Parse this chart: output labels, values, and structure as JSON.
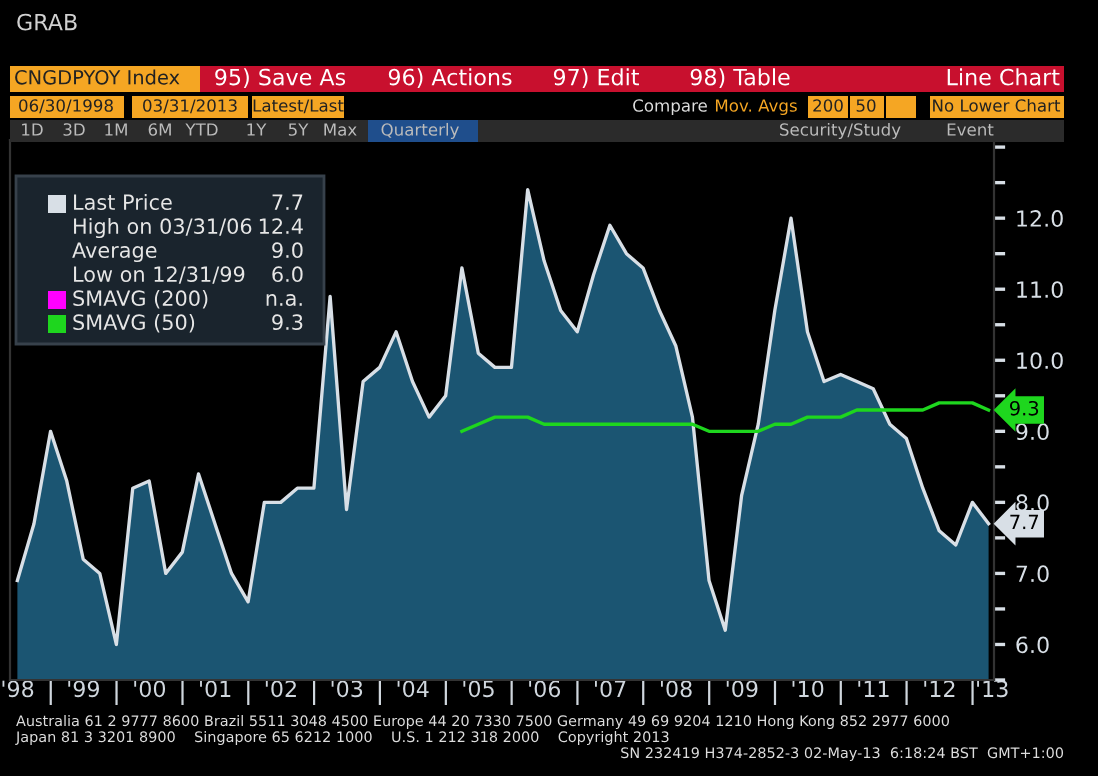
{
  "chart_data": {
    "type": "area",
    "x": [
      "1998-06-30",
      "1998-09-30",
      "1998-12-31",
      "1999-03-31",
      "1999-06-30",
      "1999-09-30",
      "1999-12-31",
      "2000-03-31",
      "2000-06-30",
      "2000-09-30",
      "2000-12-31",
      "2001-03-31",
      "2001-06-30",
      "2001-09-30",
      "2001-12-31",
      "2002-03-31",
      "2002-06-30",
      "2002-09-30",
      "2002-12-31",
      "2003-03-31",
      "2003-06-30",
      "2003-09-30",
      "2003-12-31",
      "2004-03-31",
      "2004-06-30",
      "2004-09-30",
      "2004-12-31",
      "2005-03-31",
      "2005-06-30",
      "2005-09-30",
      "2005-12-31",
      "2006-03-31",
      "2006-06-30",
      "2006-09-30",
      "2006-12-31",
      "2007-03-31",
      "2007-06-30",
      "2007-09-30",
      "2007-12-31",
      "2008-03-31",
      "2008-06-30",
      "2008-09-30",
      "2008-12-31",
      "2009-03-31",
      "2009-06-30",
      "2009-09-30",
      "2009-12-31",
      "2010-03-31",
      "2010-06-30",
      "2010-09-30",
      "2010-12-31",
      "2011-03-31",
      "2011-06-30",
      "2011-09-30",
      "2011-12-31",
      "2012-03-31",
      "2012-06-30",
      "2012-09-30",
      "2012-12-31",
      "2013-03-31"
    ],
    "series": [
      {
        "name": "Last Price",
        "color": "#d8dfe6",
        "values": [
          6.9,
          7.7,
          9.0,
          8.3,
          7.2,
          7.0,
          6.0,
          8.2,
          8.3,
          7.0,
          7.3,
          8.4,
          7.7,
          7.0,
          6.6,
          8.0,
          8.0,
          8.2,
          8.2,
          10.9,
          7.9,
          9.7,
          9.9,
          10.4,
          9.7,
          9.2,
          9.5,
          11.3,
          10.1,
          9.9,
          9.9,
          12.4,
          11.4,
          10.7,
          10.4,
          11.2,
          11.9,
          11.5,
          11.3,
          10.7,
          10.2,
          9.2,
          6.9,
          6.2,
          8.1,
          9.1,
          10.7,
          12.0,
          10.4,
          9.7,
          9.8,
          9.7,
          9.6,
          9.1,
          8.9,
          8.2,
          7.6,
          7.4,
          8.0,
          7.7
        ],
        "value_labels": [
          null,
          null,
          null,
          null,
          null,
          null,
          null,
          null,
          null,
          null,
          null,
          null,
          null,
          null,
          null,
          null,
          null,
          null,
          null,
          null,
          null,
          null,
          null,
          null,
          null,
          null,
          null,
          null,
          null,
          null,
          null,
          null,
          null,
          null,
          null,
          null,
          null,
          null,
          null,
          null,
          null,
          null,
          null,
          null,
          null,
          null,
          null,
          null,
          null,
          null,
          null,
          null,
          null,
          null,
          null,
          null,
          null,
          null,
          null,
          "7.7"
        ]
      },
      {
        "name": "SMAVG (200)",
        "type": "line",
        "color": "#ff00ff",
        "values": [
          null,
          null,
          null,
          null,
          null,
          null,
          null,
          null,
          null,
          null,
          null,
          null,
          null,
          null,
          null,
          null,
          null,
          null,
          null,
          null,
          null,
          null,
          null,
          null,
          null,
          null,
          null,
          null,
          null,
          null,
          null,
          null,
          null,
          null,
          null,
          null,
          null,
          null,
          null,
          null,
          null,
          null,
          null,
          null,
          null,
          null,
          null,
          null,
          null,
          null,
          null,
          null,
          null,
          null,
          null,
          null,
          null,
          null,
          null,
          null
        ]
      },
      {
        "name": "SMAVG (50)",
        "type": "line",
        "color": "#1ed61e",
        "values": [
          null,
          null,
          null,
          null,
          null,
          null,
          null,
          null,
          null,
          null,
          null,
          null,
          null,
          null,
          null,
          null,
          null,
          null,
          null,
          null,
          null,
          null,
          null,
          null,
          null,
          null,
          null,
          9.0,
          9.1,
          9.2,
          9.2,
          9.2,
          9.1,
          9.1,
          9.1,
          9.1,
          9.1,
          9.1,
          9.1,
          9.1,
          9.1,
          9.1,
          9.0,
          9.0,
          9.0,
          9.0,
          9.1,
          9.1,
          9.2,
          9.2,
          9.2,
          9.3,
          9.3,
          9.3,
          9.3,
          9.3,
          9.4,
          9.4,
          9.4,
          9.3
        ],
        "value_labels": [
          null,
          null,
          null,
          null,
          null,
          null,
          null,
          null,
          null,
          null,
          null,
          null,
          null,
          null,
          null,
          null,
          null,
          null,
          null,
          null,
          null,
          null,
          null,
          null,
          null,
          null,
          null,
          null,
          null,
          null,
          null,
          null,
          null,
          null,
          null,
          null,
          null,
          null,
          null,
          null,
          null,
          null,
          null,
          null,
          null,
          null,
          null,
          null,
          null,
          null,
          null,
          null,
          null,
          null,
          null,
          null,
          null,
          null,
          null,
          "9.3"
        ]
      }
    ],
    "xlim": [
      "1998-05-20",
      "2013-04-30"
    ],
    "xticks": [
      {
        "value": "1998-07-01",
        "label": "'98"
      },
      {
        "value": "1999-01-01",
        "label": null
      },
      {
        "value": "1999-07-01",
        "label": "'99"
      },
      {
        "value": "2000-01-01",
        "label": null
      },
      {
        "value": "2000-07-01",
        "label": "'00"
      },
      {
        "value": "2001-01-01",
        "label": null
      },
      {
        "value": "2001-07-01",
        "label": "'01"
      },
      {
        "value": "2002-01-01",
        "label": null
      },
      {
        "value": "2002-07-01",
        "label": "'02"
      },
      {
        "value": "2003-01-01",
        "label": null
      },
      {
        "value": "2003-07-01",
        "label": "'03"
      },
      {
        "value": "2004-01-01",
        "label": null
      },
      {
        "value": "2004-07-01",
        "label": "'04"
      },
      {
        "value": "2005-01-01",
        "label": null
      },
      {
        "value": "2005-07-01",
        "label": "'05"
      },
      {
        "value": "2006-01-01",
        "label": null
      },
      {
        "value": "2006-07-01",
        "label": "'06"
      },
      {
        "value": "2007-01-01",
        "label": null
      },
      {
        "value": "2007-07-01",
        "label": "'07"
      },
      {
        "value": "2008-01-01",
        "label": null
      },
      {
        "value": "2008-07-01",
        "label": "'08"
      },
      {
        "value": "2009-01-01",
        "label": null
      },
      {
        "value": "2009-07-01",
        "label": "'09"
      },
      {
        "value": "2010-01-01",
        "label": null
      },
      {
        "value": "2010-07-01",
        "label": "'10"
      },
      {
        "value": "2011-01-01",
        "label": null
      },
      {
        "value": "2011-07-01",
        "label": "'11"
      },
      {
        "value": "2012-01-01",
        "label": null
      },
      {
        "value": "2012-07-01",
        "label": "'12"
      },
      {
        "value": "2013-01-01",
        "label": null
      },
      {
        "value": "2013-04-20",
        "label": "'13"
      }
    ],
    "ylim": [
      5.5,
      13.1
    ],
    "yticks": [
      {
        "value": 5.5,
        "label": null
      },
      {
        "value": 6,
        "label": "6.0"
      },
      {
        "value": 6.5,
        "label": null
      },
      {
        "value": 7,
        "label": "7.0"
      },
      {
        "value": 7.5,
        "label": null
      },
      {
        "value": 8,
        "label": "8.0"
      },
      {
        "value": 8.5,
        "label": null
      },
      {
        "value": 9,
        "label": "9.0"
      },
      {
        "value": 9.5,
        "label": null
      },
      {
        "value": 10,
        "label": "10.0"
      },
      {
        "value": 10.5,
        "label": null
      },
      {
        "value": 11,
        "label": "11.0"
      },
      {
        "value": 11.5,
        "label": null
      },
      {
        "value": 12,
        "label": "12.0"
      },
      {
        "value": 12.5,
        "label": null
      },
      {
        "value": 13,
        "label": null
      }
    ],
    "grid": false,
    "legend": "top left",
    "annotations": [
      "GRAB",
      "CNGDPYOY Index",
      "95) Save As",
      "96) Actions",
      "97) Edit",
      "98) Table",
      "Line Chart",
      "06/30/1998",
      "03/31/2013",
      "Latest/Last",
      "Compare",
      "Mov. Avgs",
      "200",
      "50",
      "No Lower Chart",
      "1D",
      "3D",
      "1M",
      "6M",
      "YTD",
      "1Y",
      "5Y",
      "Max",
      "Quarterly",
      "Security/Study",
      "Event",
      "High on 03/31/06",
      "Average",
      "Low on 12/31/99",
      "7.7",
      "12.4",
      "9.0",
      "6.0",
      "n.a.",
      "9.3",
      "Australia 61 2 9777 8600 Brazil 5511 3048 4500 Europe 44 20 7330 7500 Germany 49 69 9204 1210 Hong Kong 852 2977 6000",
      "Japan 81 3 3201 8900    Singapore 65 6212 1000    U.S. 1 212 318 2000    Copyright 2013",
      "SN 232419 H374-2852-3 02-May-13  6:18:24 BST  GMT+1:00"
    ]
  }
}
